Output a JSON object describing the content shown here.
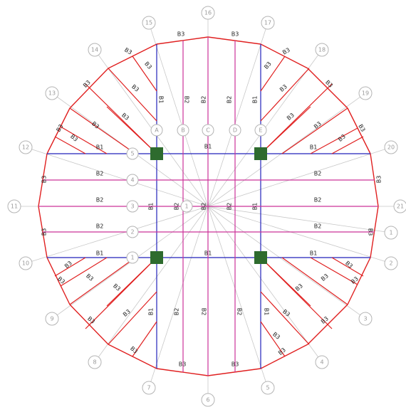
{
  "colors": {
    "B1": "#2222bb",
    "B2": "#cc3399",
    "B3": "#e02020",
    "column": "#2e6b2e",
    "grid": "#c8c8c8",
    "bubble": "#9a9a9a"
  },
  "beam_types": [
    "B1",
    "B2",
    "B3"
  ],
  "radial_bubbles": [
    "1",
    "2",
    "3",
    "4",
    "5",
    "6",
    "7",
    "8",
    "9",
    "10",
    "11",
    "12",
    "13",
    "14",
    "15",
    "16",
    "17",
    "18",
    "19",
    "20",
    "21"
  ],
  "row_bubbles": [
    "1",
    "2",
    "3",
    "4",
    "5"
  ],
  "column_bubbles": [
    "A",
    "B",
    "C",
    "D",
    "E"
  ],
  "center_labels": [
    "1",
    "B2"
  ]
}
